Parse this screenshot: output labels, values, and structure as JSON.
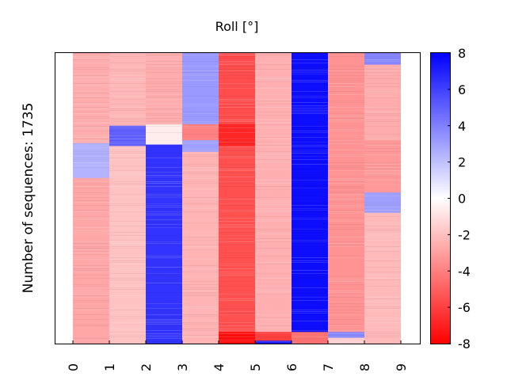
{
  "chart_data": {
    "type": "heatmap",
    "title": "Roll [°]",
    "xlabel": "",
    "ylabel": "Number of sequences: 1735",
    "x_ticks": [
      "0",
      "1",
      "2",
      "3",
      "4",
      "5",
      "6",
      "7",
      "8",
      "9"
    ],
    "n_rows": 1735,
    "colorbar": {
      "min": -8,
      "max": 8,
      "ticks": [
        8,
        6,
        4,
        2,
        0,
        -2,
        -4,
        -6,
        -8
      ],
      "tick_labels": [
        "8",
        "6",
        "4",
        "2",
        "0",
        "-2",
        "-4",
        "-6",
        "-8"
      ],
      "colormap": [
        "#ff0000",
        "#ffffff",
        "#0000ff"
      ]
    },
    "columns": [
      {
        "index": 0,
        "segments": [
          {
            "from": 0.0,
            "to": 0.31,
            "value": -2.6
          },
          {
            "from": 0.31,
            "to": 0.43,
            "value": 2.4
          },
          {
            "from": 0.43,
            "to": 1.0,
            "value": -2.8
          }
        ]
      },
      {
        "index": 1,
        "segments": [
          {
            "from": 0.0,
            "to": 0.25,
            "value": -2.3
          },
          {
            "from": 0.25,
            "to": 0.32,
            "value": 5.0
          },
          {
            "from": 0.32,
            "to": 1.0,
            "value": -1.9
          }
        ]
      },
      {
        "index": 2,
        "segments": [
          {
            "from": 0.0,
            "to": 0.245,
            "value": -2.6
          },
          {
            "from": 0.245,
            "to": 0.315,
            "value": -0.6
          },
          {
            "from": 0.315,
            "to": 1.0,
            "value": 6.4
          }
        ]
      },
      {
        "index": 3,
        "segments": [
          {
            "from": 0.0,
            "to": 0.245,
            "value": 3.2
          },
          {
            "from": 0.245,
            "to": 0.3,
            "value": -4.0
          },
          {
            "from": 0.3,
            "to": 0.34,
            "value": 3.0
          },
          {
            "from": 0.34,
            "to": 1.0,
            "value": -2.4
          }
        ]
      },
      {
        "index": 4,
        "segments": [
          {
            "from": 0.0,
            "to": 0.245,
            "value": -5.6
          },
          {
            "from": 0.245,
            "to": 0.32,
            "value": -6.8
          },
          {
            "from": 0.32,
            "to": 0.96,
            "value": -5.5
          },
          {
            "from": 0.96,
            "to": 1.0,
            "value": -7.6
          }
        ]
      },
      {
        "index": 5,
        "segments": [
          {
            "from": 0.0,
            "to": 0.96,
            "value": -2.5
          },
          {
            "from": 0.96,
            "to": 0.99,
            "value": -6.0
          },
          {
            "from": 0.99,
            "to": 1.0,
            "value": 7.0
          }
        ]
      },
      {
        "index": 6,
        "segments": [
          {
            "from": 0.0,
            "to": 0.96,
            "value": 7.6
          },
          {
            "from": 0.96,
            "to": 1.0,
            "value": -4.4
          }
        ]
      },
      {
        "index": 7,
        "segments": [
          {
            "from": 0.0,
            "to": 0.96,
            "value": -3.4
          },
          {
            "from": 0.96,
            "to": 0.98,
            "value": 3.8
          },
          {
            "from": 0.98,
            "to": 1.0,
            "value": -1.5
          }
        ]
      },
      {
        "index": 8,
        "segments": [
          {
            "from": 0.0,
            "to": 0.04,
            "value": 3.8
          },
          {
            "from": 0.04,
            "to": 0.3,
            "value": -2.6
          },
          {
            "from": 0.3,
            "to": 0.48,
            "value": -3.2
          },
          {
            "from": 0.48,
            "to": 0.55,
            "value": 3.0
          },
          {
            "from": 0.55,
            "to": 1.0,
            "value": -2.2
          }
        ]
      },
      {
        "index": 9,
        "segments": []
      }
    ]
  }
}
